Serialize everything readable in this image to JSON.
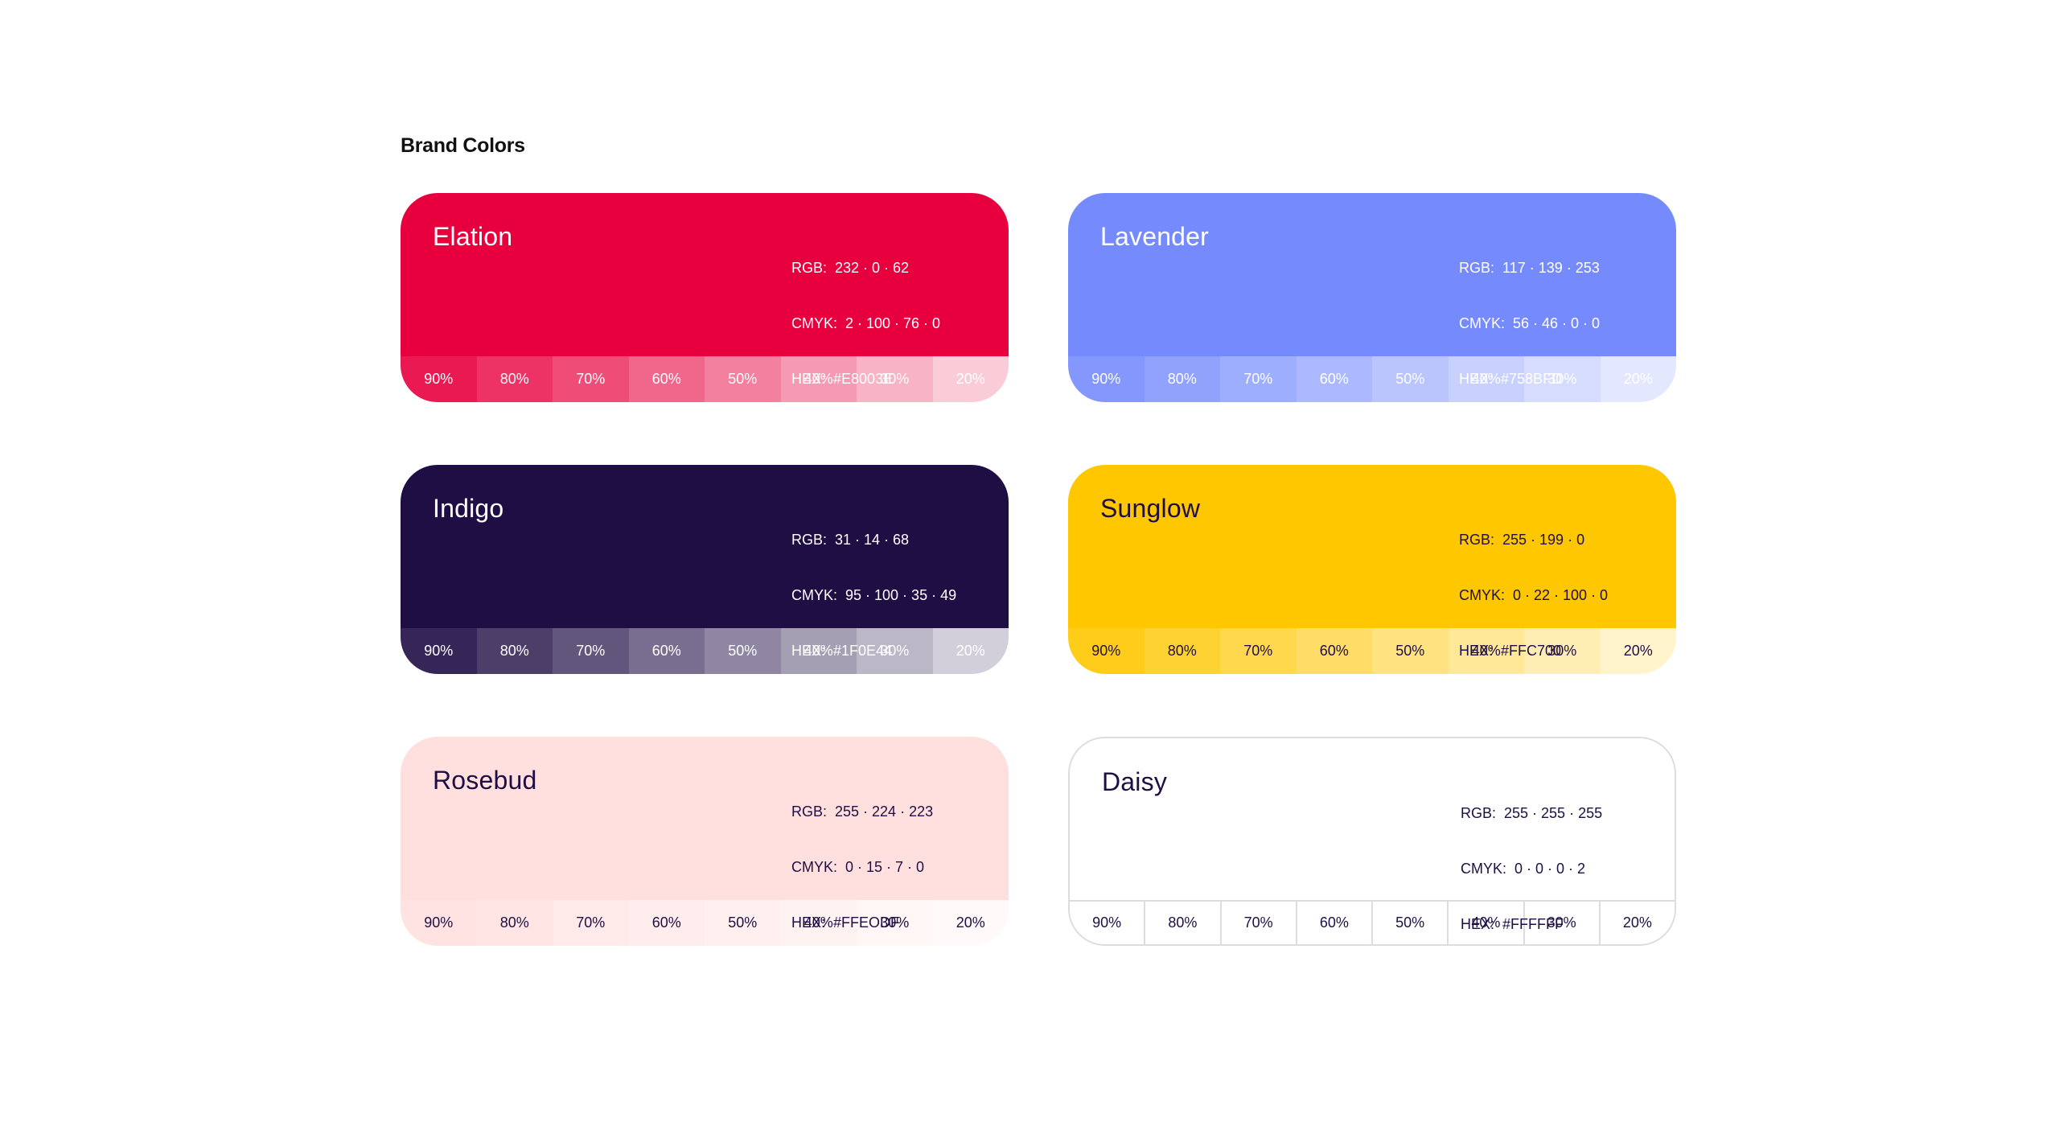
{
  "page": {
    "title": "Brand Colors"
  },
  "colors": [
    {
      "name": "Elation",
      "hex": "#E8003E",
      "rgb_line": "RGB:  232 · 0 · 62",
      "cmyk_line": "CMYK:  2 · 100 · 76 · 0",
      "hex_line": "HEX:  #E8003E",
      "text_color": "#ffffff",
      "tint_text_color": "#ffffff",
      "bordered": false,
      "tints": [
        {
          "label": "90%",
          "level": 0.9
        },
        {
          "label": "80%",
          "level": 0.8
        },
        {
          "label": "70%",
          "level": 0.7
        },
        {
          "label": "60%",
          "level": 0.6
        },
        {
          "label": "50%",
          "level": 0.5
        },
        {
          "label": "40%",
          "level": 0.4
        },
        {
          "label": "30%",
          "level": 0.3
        },
        {
          "label": "20%",
          "level": 0.2
        }
      ]
    },
    {
      "name": "Lavender",
      "hex": "#758BFD",
      "rgb_line": "RGB:  117 · 139 · 253",
      "cmyk_line": "CMYK:  56 · 46 · 0 · 0",
      "hex_line": "HEX:  #758BFD",
      "text_color": "#ffffff",
      "tint_text_color": "#ffffff",
      "bordered": false,
      "tints": [
        {
          "label": "90%",
          "level": 0.9
        },
        {
          "label": "80%",
          "level": 0.8
        },
        {
          "label": "70%",
          "level": 0.7
        },
        {
          "label": "60%",
          "level": 0.6
        },
        {
          "label": "50%",
          "level": 0.5
        },
        {
          "label": "40%",
          "level": 0.4
        },
        {
          "label": "30%",
          "level": 0.3
        },
        {
          "label": "20%",
          "level": 0.2
        }
      ]
    },
    {
      "name": "Indigo",
      "hex": "#1F0E44",
      "rgb_line": "RGB:  31 · 14 · 68",
      "cmyk_line": "CMYK:  95 · 100 · 35 · 49",
      "hex_line": "HEX:  #1F0E44",
      "text_color": "#ffffff",
      "tint_text_color": "#ffffff",
      "bordered": false,
      "tints": [
        {
          "label": "90%",
          "level": 0.9
        },
        {
          "label": "80%",
          "level": 0.8
        },
        {
          "label": "70%",
          "level": 0.7
        },
        {
          "label": "60%",
          "level": 0.6
        },
        {
          "label": "50%",
          "level": 0.5
        },
        {
          "label": "40%",
          "level": 0.4
        },
        {
          "label": "30%",
          "level": 0.3
        },
        {
          "label": "20%",
          "level": 0.2
        }
      ]
    },
    {
      "name": "Sunglow",
      "hex": "#FFC700",
      "rgb_line": "RGB:  255 · 199 · 0",
      "cmyk_line": "CMYK:  0 · 22 · 100 · 0",
      "hex_line": "HEX:  #FFC700",
      "text_color": "#1F0E44",
      "tint_text_color": "#1F0E44",
      "bordered": false,
      "tints": [
        {
          "label": "90%",
          "level": 0.9
        },
        {
          "label": "80%",
          "level": 0.8
        },
        {
          "label": "70%",
          "level": 0.7
        },
        {
          "label": "60%",
          "level": 0.6
        },
        {
          "label": "50%",
          "level": 0.5
        },
        {
          "label": "40%",
          "level": 0.4
        },
        {
          "label": "30%",
          "level": 0.3
        },
        {
          "label": "20%",
          "level": 0.2
        }
      ]
    },
    {
      "name": "Rosebud",
      "hex": "#FFE0DF",
      "rgb_line": "RGB:  255 · 224 · 223",
      "cmyk_line": "CMYK:  0 · 15 · 7 · 0",
      "hex_line": "HEX:  #FFEODF",
      "text_color": "#1F0E44",
      "tint_text_color": "#1F0E44",
      "bordered": false,
      "tints": [
        {
          "label": "90%",
          "level": 0.9
        },
        {
          "label": "80%",
          "level": 0.8
        },
        {
          "label": "70%",
          "level": 0.7
        },
        {
          "label": "60%",
          "level": 0.6
        },
        {
          "label": "50%",
          "level": 0.5
        },
        {
          "label": "40%",
          "level": 0.4
        },
        {
          "label": "30%",
          "level": 0.3
        },
        {
          "label": "20%",
          "level": 0.2
        }
      ]
    },
    {
      "name": "Daisy",
      "hex": "#FFFFFF",
      "rgb_line": "RGB:  255 · 255 · 255",
      "cmyk_line": "CMYK:  0 · 0 · 0 · 2",
      "hex_line": "HEX:  #FFFFFF",
      "text_color": "#1F0E44",
      "tint_text_color": "#1F0E44",
      "bordered": true,
      "tints": [
        {
          "label": "90%",
          "level": 0.9
        },
        {
          "label": "80%",
          "level": 0.8
        },
        {
          "label": "70%",
          "level": 0.7
        },
        {
          "label": "60%",
          "level": 0.6
        },
        {
          "label": "50%",
          "level": 0.5
        },
        {
          "label": "40%",
          "level": 0.4
        },
        {
          "label": "30%",
          "level": 0.3
        },
        {
          "label": "20%",
          "level": 0.2
        }
      ]
    }
  ]
}
